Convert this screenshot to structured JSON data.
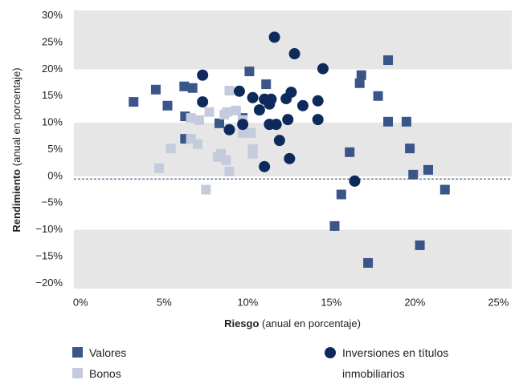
{
  "chart_data": {
    "type": "scatter",
    "ylabel_bold": "Rendimiento",
    "ylabel": "(anual en porcentaje)",
    "xlabel_bold": "Riesgo",
    "xlabel": "(anual en porcentaje)",
    "xlim": [
      -0.4,
      25.8
    ],
    "ylim": [
      -21,
      31
    ],
    "xticks": [
      {
        "value": 0,
        "label": "0%"
      },
      {
        "value": 5,
        "label": "5%"
      },
      {
        "value": 10,
        "label": "10%"
      },
      {
        "value": 15,
        "label": "15%"
      },
      {
        "value": 20,
        "label": "20%"
      },
      {
        "value": 25,
        "label": "25%"
      }
    ],
    "yticks": [
      {
        "value": -20,
        "label": "−20%"
      },
      {
        "value": -15,
        "label": "−15%"
      },
      {
        "value": -10,
        "label": "−10%"
      },
      {
        "value": -5,
        "label": "−5%"
      },
      {
        "value": 0,
        "label": "0%"
      },
      {
        "value": 5,
        "label": "5%"
      },
      {
        "value": 10,
        "label": "10%"
      },
      {
        "value": 15,
        "label": "15%"
      },
      {
        "value": 20,
        "label": "20%"
      },
      {
        "value": 25,
        "label": "25%"
      },
      {
        "value": 30,
        "label": "30%"
      }
    ],
    "band_color": "#e6e6e6",
    "reference_line": -0.5,
    "reference_color": "#1f3a6e",
    "series": [
      {
        "name": "Valores",
        "color": "#3a5688",
        "marker": "square",
        "x": [
          3.17,
          4.5,
          5.2,
          6.2,
          6.7,
          6.25,
          8.3,
          10.1,
          11.1,
          9.7,
          6.25,
          16.1,
          15.6,
          15.2,
          16.7,
          16.8,
          17.8,
          18.4,
          18.4,
          19.5,
          19.7,
          19.9,
          20.8,
          17.2,
          20.3,
          21.8
        ],
        "values": [
          13.9,
          16.2,
          13.2,
          16.8,
          16.5,
          11.2,
          9.9,
          19.6,
          17.2,
          10.9,
          7.0,
          4.5,
          -3.4,
          -9.3,
          17.4,
          18.9,
          15.0,
          21.7,
          10.2,
          10.2,
          5.2,
          0.3,
          1.2,
          -16.2,
          -12.9,
          -2.5
        ]
      },
      {
        "name": "Bonos",
        "color": "#c4cbdd",
        "marker": "square",
        "x": [
          4.7,
          5.4,
          6.6,
          7.1,
          7.7,
          6.6,
          7.0,
          8.4,
          8.2,
          8.7,
          8.9,
          7.5,
          8.75,
          8.9,
          9.3,
          9.7,
          10.2,
          10.3,
          10.3,
          9.7,
          8.6
        ],
        "values": [
          1.5,
          5.2,
          10.9,
          10.5,
          12.0,
          7.0,
          6.0,
          4.2,
          3.6,
          3.0,
          0.9,
          -2.5,
          12.0,
          16.0,
          12.3,
          8.1,
          8.1,
          5.1,
          4.2,
          10.5,
          11.5
        ]
      },
      {
        "name": "Inversiones en títulos inmobiliarios",
        "color": "#0e2a5c",
        "marker": "circle",
        "x": [
          11.6,
          12.8,
          14.5,
          7.3,
          7.3,
          9.5,
          10.3,
          11.0,
          11.4,
          12.3,
          12.6,
          13.3,
          14.2,
          10.7,
          11.3,
          9.7,
          8.9,
          11.3,
          11.7,
          12.4,
          14.2,
          11.9,
          11.0,
          12.5,
          16.4
        ],
        "values": [
          26.0,
          22.9,
          20.1,
          18.9,
          13.9,
          15.9,
          14.7,
          14.4,
          14.4,
          14.5,
          15.7,
          13.2,
          14.1,
          12.4,
          13.5,
          9.7,
          8.7,
          9.7,
          9.7,
          10.6,
          10.6,
          6.7,
          1.8,
          3.3,
          -0.9
        ]
      }
    ]
  }
}
